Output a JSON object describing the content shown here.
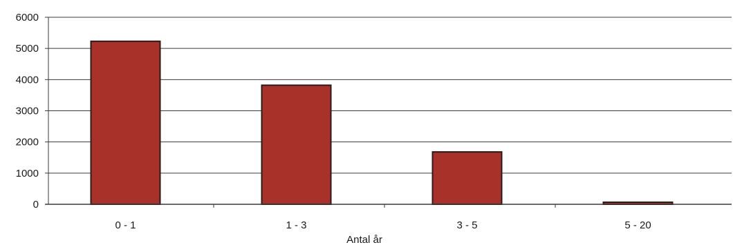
{
  "chart_data": {
    "type": "bar",
    "categories": [
      "0 - 1",
      "1 - 3",
      "3 - 5",
      "5 - 20"
    ],
    "values": [
      5230,
      3820,
      1680,
      50
    ],
    "title": "",
    "xlabel": "Antal år",
    "ylabel": "",
    "ylim": [
      0,
      6000
    ],
    "yticks": [
      "0",
      "1000",
      "2000",
      "3000",
      "4000",
      "5000",
      "6000"
    ],
    "grid": true,
    "legend": "none",
    "bar_color": "#a8312a",
    "bar_edge_color": "#2a1a1a"
  }
}
